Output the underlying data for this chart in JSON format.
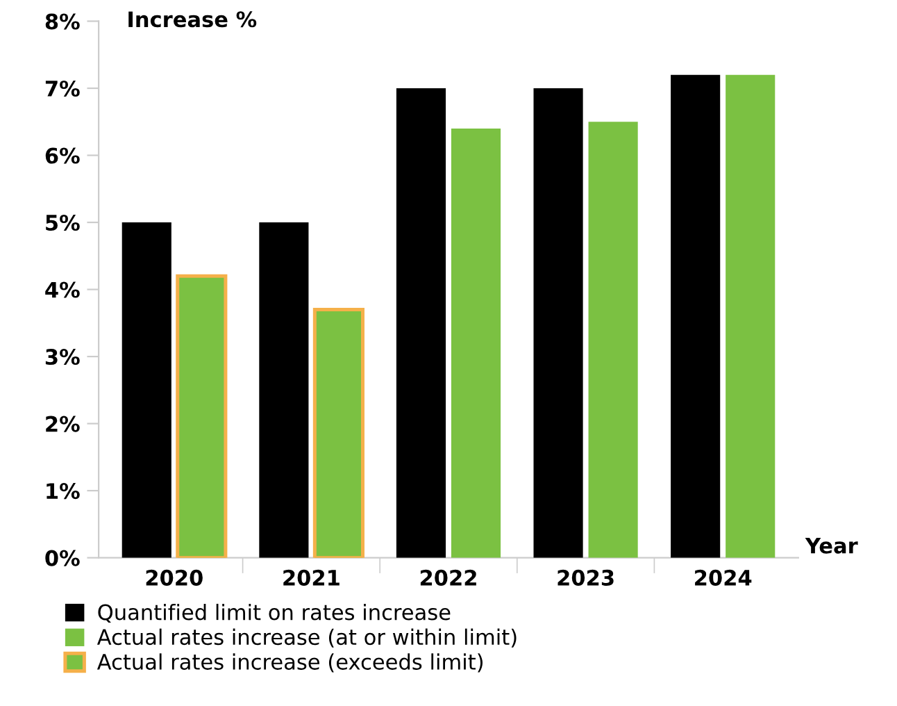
{
  "chart_data": {
    "type": "bar",
    "ylabel": "Increase %",
    "xlabel": "Year",
    "categories": [
      "2020",
      "2021",
      "2022",
      "2023",
      "2024"
    ],
    "series": [
      {
        "name": "Quantified limit on rates increase",
        "color": "#000000",
        "values": [
          5,
          5,
          7,
          7,
          7.2
        ]
      },
      {
        "name": "Actual rates increase (at or within limit)",
        "color": "#7bc142",
        "values": [
          null,
          null,
          6.4,
          6.5,
          7.2
        ]
      },
      {
        "name": "Actual rates increase (exceeds limit)",
        "color": "#f5b04a",
        "values": [
          4.2,
          3.7,
          null,
          null,
          null
        ]
      }
    ],
    "ylim": [
      0,
      8
    ],
    "yticks": [
      {
        "value": 0,
        "label": "0%"
      },
      {
        "value": 1,
        "label": "1%"
      },
      {
        "value": 2,
        "label": "2%"
      },
      {
        "value": 3,
        "label": "3%"
      },
      {
        "value": 4,
        "label": "4%"
      },
      {
        "value": 5,
        "label": "5%"
      },
      {
        "value": 6,
        "label": "6%"
      },
      {
        "value": 7,
        "label": "7%"
      },
      {
        "value": 8,
        "label": "8%"
      }
    ],
    "grid": false,
    "legend": "bottom left"
  }
}
